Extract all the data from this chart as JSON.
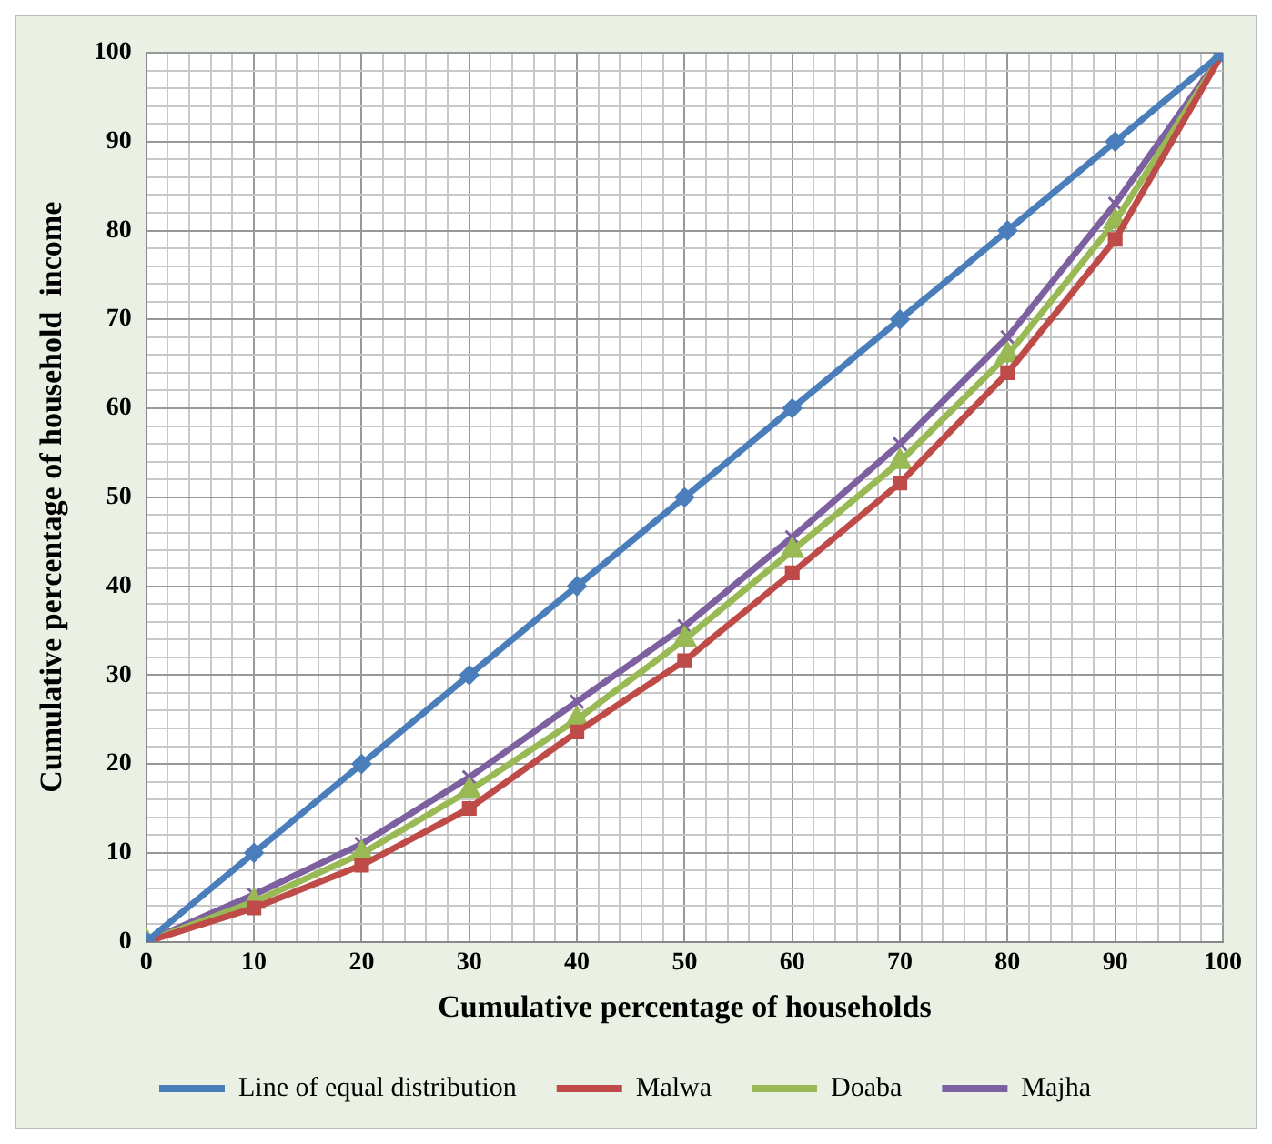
{
  "chart_data": {
    "type": "line",
    "xlabel": "Cumulative percentage of households",
    "ylabel": "Cumulative percentage of household  income",
    "x": [
      0,
      10,
      20,
      30,
      40,
      50,
      60,
      70,
      80,
      90,
      100
    ],
    "series": [
      {
        "name": "Line of equal distribution",
        "color": "#4a7ebb",
        "marker": "diamond",
        "values": [
          0,
          10,
          20,
          30,
          40,
          50,
          60,
          70,
          80,
          90,
          100
        ]
      },
      {
        "name": "Malwa",
        "color": "#be4b48",
        "marker": "square",
        "values": [
          0,
          3.8,
          8.6,
          15,
          23.6,
          31.6,
          41.5,
          51.6,
          64,
          79,
          100
        ]
      },
      {
        "name": "Doaba",
        "color": "#98b954",
        "marker": "triangle",
        "values": [
          0,
          4.5,
          9.9,
          17,
          25,
          34,
          44,
          54,
          66,
          81,
          100
        ]
      },
      {
        "name": "Majha",
        "color": "#7d60a0",
        "marker": "cross",
        "values": [
          0,
          5.3,
          11,
          18.5,
          27,
          35.5,
          45.5,
          56,
          68,
          83,
          100
        ]
      }
    ],
    "xlim": [
      0,
      100
    ],
    "ylim": [
      0,
      100
    ],
    "xticks": [
      0,
      {
        "value": 2,
        "label": null
      },
      {
        "value": 4,
        "label": null
      },
      {
        "value": 6,
        "label": null
      },
      {
        "value": 8,
        "label": null
      },
      10,
      {
        "value": 12,
        "label": null
      },
      {
        "value": 14,
        "label": null
      },
      {
        "value": 16,
        "label": null
      },
      {
        "value": 18,
        "label": null
      },
      20,
      {
        "value": 22,
        "label": null
      },
      {
        "value": 24,
        "label": null
      },
      {
        "value": 26,
        "label": null
      },
      {
        "value": 28,
        "label": null
      },
      30,
      {
        "value": 32,
        "label": null
      },
      {
        "value": 34,
        "label": null
      },
      {
        "value": 36,
        "label": null
      },
      {
        "value": 38,
        "label": null
      },
      40,
      {
        "value": 42,
        "label": null
      },
      {
        "value": 44,
        "label": null
      },
      {
        "value": 46,
        "label": null
      },
      {
        "value": 48,
        "label": null
      },
      50,
      {
        "value": 52,
        "label": null
      },
      {
        "value": 54,
        "label": null
      },
      {
        "value": 56,
        "label": null
      },
      {
        "value": 58,
        "label": null
      },
      60,
      {
        "value": 62,
        "label": null
      },
      {
        "value": 64,
        "label": null
      },
      {
        "value": 66,
        "label": null
      },
      {
        "value": 68,
        "label": null
      },
      70,
      {
        "value": 72,
        "label": null
      },
      {
        "value": 74,
        "label": null
      },
      {
        "value": 76,
        "label": null
      },
      {
        "value": 78,
        "label": null
      },
      80,
      {
        "value": 82,
        "label": null
      },
      {
        "value": 84,
        "label": null
      },
      {
        "value": 86,
        "label": null
      },
      {
        "value": 88,
        "label": null
      },
      90,
      {
        "value": 92,
        "label": null
      },
      {
        "value": 94,
        "label": null
      },
      {
        "value": 96,
        "label": null
      },
      {
        "value": 98,
        "label": null
      },
      100
    ],
    "yticks": [
      0,
      {
        "value": 2,
        "label": null
      },
      {
        "value": 4,
        "label": null
      },
      {
        "value": 6,
        "label": null
      },
      {
        "value": 8,
        "label": null
      },
      10,
      {
        "value": 12,
        "label": null
      },
      {
        "value": 14,
        "label": null
      },
      {
        "value": 16,
        "label": null
      },
      {
        "value": 18,
        "label": null
      },
      20,
      {
        "value": 22,
        "label": null
      },
      {
        "value": 24,
        "label": null
      },
      {
        "value": 26,
        "label": null
      },
      {
        "value": 28,
        "label": null
      },
      30,
      {
        "value": 32,
        "label": null
      },
      {
        "value": 34,
        "label": null
      },
      {
        "value": 36,
        "label": null
      },
      {
        "value": 38,
        "label": null
      },
      40,
      {
        "value": 42,
        "label": null
      },
      {
        "value": 44,
        "label": null
      },
      {
        "value": 46,
        "label": null
      },
      {
        "value": 48,
        "label": null
      },
      50,
      {
        "value": 52,
        "label": null
      },
      {
        "value": 54,
        "label": null
      },
      {
        "value": 56,
        "label": null
      },
      {
        "value": 58,
        "label": null
      },
      60,
      {
        "value": 62,
        "label": null
      },
      {
        "value": 64,
        "label": null
      },
      {
        "value": 66,
        "label": null
      },
      {
        "value": 68,
        "label": null
      },
      70,
      {
        "value": 72,
        "label": null
      },
      {
        "value": 74,
        "label": null
      },
      {
        "value": 76,
        "label": null
      },
      {
        "value": 78,
        "label": null
      },
      80,
      {
        "value": 82,
        "label": null
      },
      {
        "value": 84,
        "label": null
      },
      {
        "value": 86,
        "label": null
      },
      {
        "value": 88,
        "label": null
      },
      90,
      {
        "value": 92,
        "label": null
      },
      {
        "value": 94,
        "label": null
      },
      {
        "value": 96,
        "label": null
      },
      {
        "value": 98,
        "label": null
      },
      100
    ],
    "grid": true,
    "legend": "bottom",
    "line_style": "solid"
  }
}
